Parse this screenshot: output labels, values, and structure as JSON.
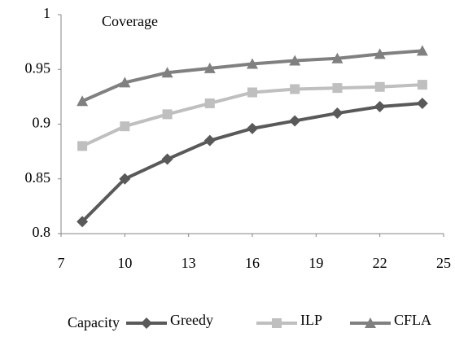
{
  "chart_data": {
    "type": "line",
    "y_label": "Coverage",
    "x_label": "Capacity",
    "x": [
      8,
      10,
      12,
      14,
      16,
      18,
      20,
      22,
      24
    ],
    "series": [
      {
        "name": "Greedy",
        "color": "#595959",
        "marker": "diamond",
        "values": [
          0.811,
          0.85,
          0.868,
          0.885,
          0.896,
          0.903,
          0.91,
          0.916,
          0.919
        ]
      },
      {
        "name": "ILP",
        "color": "#bfbfbf",
        "marker": "square",
        "values": [
          0.88,
          0.898,
          0.909,
          0.919,
          0.929,
          0.932,
          0.933,
          0.934,
          0.936
        ]
      },
      {
        "name": "CFLA",
        "color": "#808080",
        "marker": "triangle",
        "values": [
          0.921,
          0.938,
          0.947,
          0.951,
          0.955,
          0.958,
          0.96,
          0.964,
          0.967
        ]
      }
    ],
    "xlim": [
      7,
      25
    ],
    "xticks": [
      7,
      10,
      13,
      16,
      19,
      22,
      25
    ],
    "ylim": [
      0.8,
      1
    ],
    "yticks": [
      0.8,
      0.85,
      0.9,
      0.95,
      1
    ],
    "grid": false,
    "legend": "bottom"
  }
}
